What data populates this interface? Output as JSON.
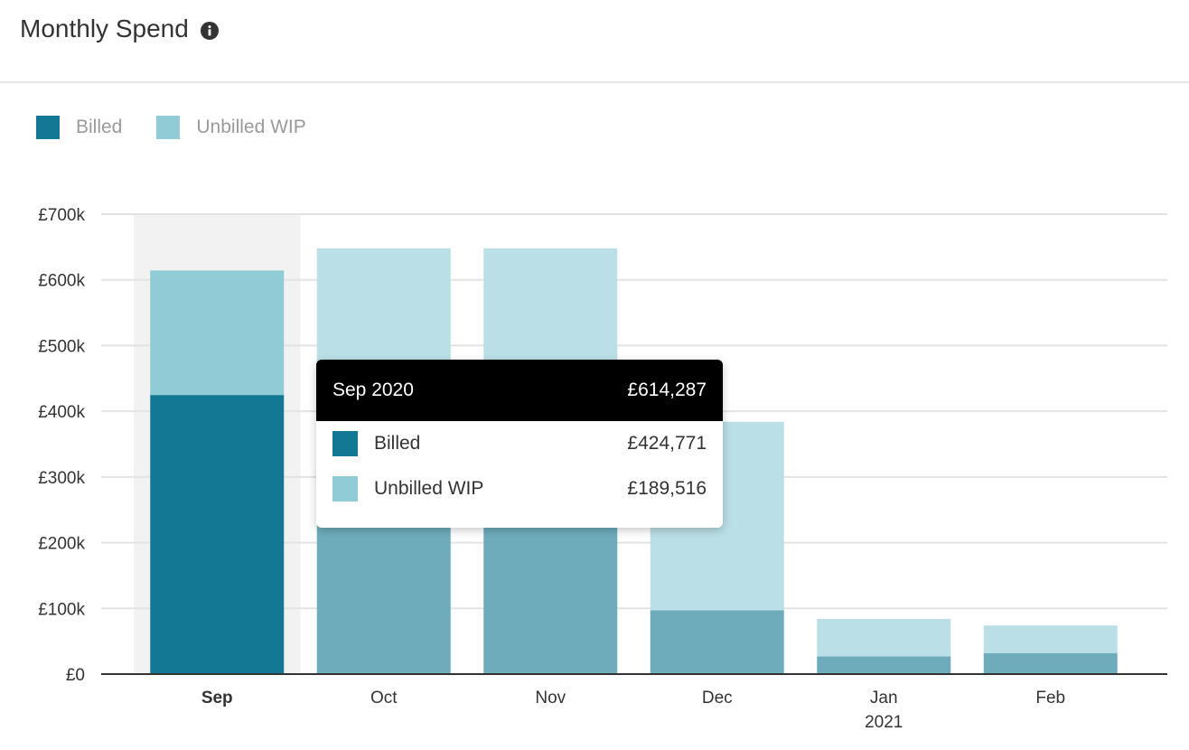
{
  "header": {
    "title": "Monthly Spend",
    "info_icon": "info-circle-icon"
  },
  "legend": [
    {
      "label": "Billed",
      "color": "#127894"
    },
    {
      "label": "Unbilled WIP",
      "color": "#90cbd6"
    }
  ],
  "chart_data": {
    "type": "bar",
    "stacked": true,
    "categories": [
      "Sep",
      "Oct",
      "Nov",
      "Dec",
      "Jan",
      "Feb"
    ],
    "category_sublabels": [
      "",
      "",
      "",
      "",
      "2021",
      ""
    ],
    "highlighted_category": "Sep",
    "series": [
      {
        "name": "Billed",
        "values": [
          424771,
          240000,
          240000,
          97000,
          27000,
          32000
        ],
        "color": "#127894",
        "faded_color": "#6eacbc"
      },
      {
        "name": "Unbilled WIP",
        "values": [
          189516,
          408000,
          408000,
          287000,
          57000,
          42000
        ],
        "color": "#90cbd6",
        "faded_color": "#badfe6"
      }
    ],
    "y_ticks": [
      {
        "value": 0,
        "label": "£0"
      },
      {
        "value": 100000,
        "label": "£100k"
      },
      {
        "value": 200000,
        "label": "£200k"
      },
      {
        "value": 300000,
        "label": "£300k"
      },
      {
        "value": 400000,
        "label": "£400k"
      },
      {
        "value": 500000,
        "label": "£500k"
      },
      {
        "value": 600000,
        "label": "£600k"
      },
      {
        "value": 700000,
        "label": "£700k"
      }
    ],
    "ylim": [
      0,
      700000
    ],
    "grid": true,
    "legend_position": "top-left"
  },
  "tooltip": {
    "title": "Sep 2020",
    "total": "£614,287",
    "rows": [
      {
        "label": "Billed",
        "value": "£424,771",
        "color": "#127894"
      },
      {
        "label": "Unbilled WIP",
        "value": "£189,516",
        "color": "#90cbd6"
      }
    ]
  }
}
